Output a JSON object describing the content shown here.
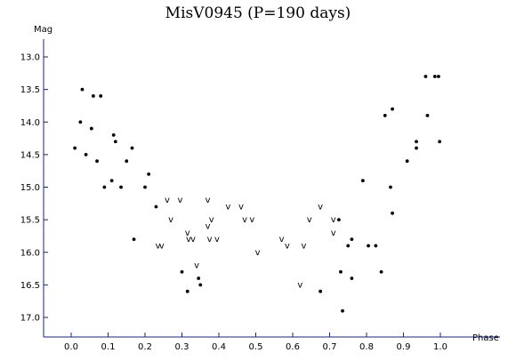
{
  "chart_data": {
    "type": "scatter",
    "title": "MisV0945 (P=190 days)",
    "xlabel": "Phase",
    "ylabel": "Mag",
    "xlim": [
      -0.06,
      1.05
    ],
    "ylim": [
      13.0,
      17.3
    ],
    "y_inverted": true,
    "x_ticks": [
      "0.0",
      "0.1",
      "0.2",
      "0.3",
      "0.4",
      "0.5",
      "0.6",
      "0.7",
      "0.8",
      "0.9",
      "1.0"
    ],
    "y_ticks": [
      "13.0",
      "13.5",
      "14.0",
      "14.5",
      "15.0",
      "15.5",
      "16.0",
      "16.5",
      "17.0"
    ],
    "grid": false,
    "marker_colors": {
      "axis": "#1a237e",
      "points": "#000000"
    },
    "series": [
      {
        "marker": "dot",
        "points": [
          [
            0.01,
            14.4
          ],
          [
            0.025,
            14.0
          ],
          [
            0.03,
            13.5
          ],
          [
            0.04,
            14.5
          ],
          [
            0.055,
            14.1
          ],
          [
            0.06,
            13.6
          ],
          [
            0.07,
            14.6
          ],
          [
            0.08,
            13.6
          ],
          [
            0.09,
            15.0
          ],
          [
            0.11,
            14.9
          ],
          [
            0.115,
            14.2
          ],
          [
            0.12,
            14.3
          ],
          [
            0.135,
            15.0
          ],
          [
            0.15,
            14.6
          ],
          [
            0.165,
            14.4
          ],
          [
            0.17,
            15.8
          ],
          [
            0.2,
            15.0
          ],
          [
            0.21,
            14.8
          ],
          [
            0.23,
            15.3
          ],
          [
            0.3,
            16.3
          ],
          [
            0.315,
            16.6
          ],
          [
            0.345,
            16.4
          ],
          [
            0.35,
            16.5
          ],
          [
            0.675,
            16.6
          ],
          [
            0.725,
            15.5
          ],
          [
            0.73,
            16.3
          ],
          [
            0.735,
            16.9
          ],
          [
            0.75,
            15.9
          ],
          [
            0.76,
            15.8
          ],
          [
            0.76,
            16.4
          ],
          [
            0.79,
            14.9
          ],
          [
            0.805,
            15.9
          ],
          [
            0.825,
            15.9
          ],
          [
            0.84,
            16.3
          ],
          [
            0.85,
            13.9
          ],
          [
            0.865,
            15.0
          ],
          [
            0.87,
            13.8
          ],
          [
            0.87,
            15.4
          ],
          [
            0.91,
            14.6
          ],
          [
            0.935,
            14.3
          ],
          [
            0.935,
            14.4
          ],
          [
            0.96,
            13.3
          ],
          [
            0.965,
            13.9
          ],
          [
            0.985,
            13.3
          ],
          [
            0.995,
            13.3
          ],
          [
            0.998,
            14.3
          ]
        ]
      },
      {
        "marker": "v",
        "points": [
          [
            0.235,
            15.9
          ],
          [
            0.245,
            15.9
          ],
          [
            0.26,
            15.2
          ],
          [
            0.27,
            15.5
          ],
          [
            0.295,
            15.2
          ],
          [
            0.315,
            15.7
          ],
          [
            0.318,
            15.8
          ],
          [
            0.33,
            15.8
          ],
          [
            0.34,
            16.2
          ],
          [
            0.37,
            15.2
          ],
          [
            0.37,
            15.6
          ],
          [
            0.375,
            15.8
          ],
          [
            0.38,
            15.5
          ],
          [
            0.395,
            15.8
          ],
          [
            0.425,
            15.3
          ],
          [
            0.46,
            15.3
          ],
          [
            0.47,
            15.5
          ],
          [
            0.49,
            15.5
          ],
          [
            0.505,
            16.0
          ],
          [
            0.57,
            15.8
          ],
          [
            0.585,
            15.9
          ],
          [
            0.62,
            16.5
          ],
          [
            0.63,
            15.9
          ],
          [
            0.645,
            15.5
          ],
          [
            0.675,
            15.3
          ],
          [
            0.71,
            15.5
          ],
          [
            0.71,
            15.7
          ]
        ]
      }
    ]
  }
}
